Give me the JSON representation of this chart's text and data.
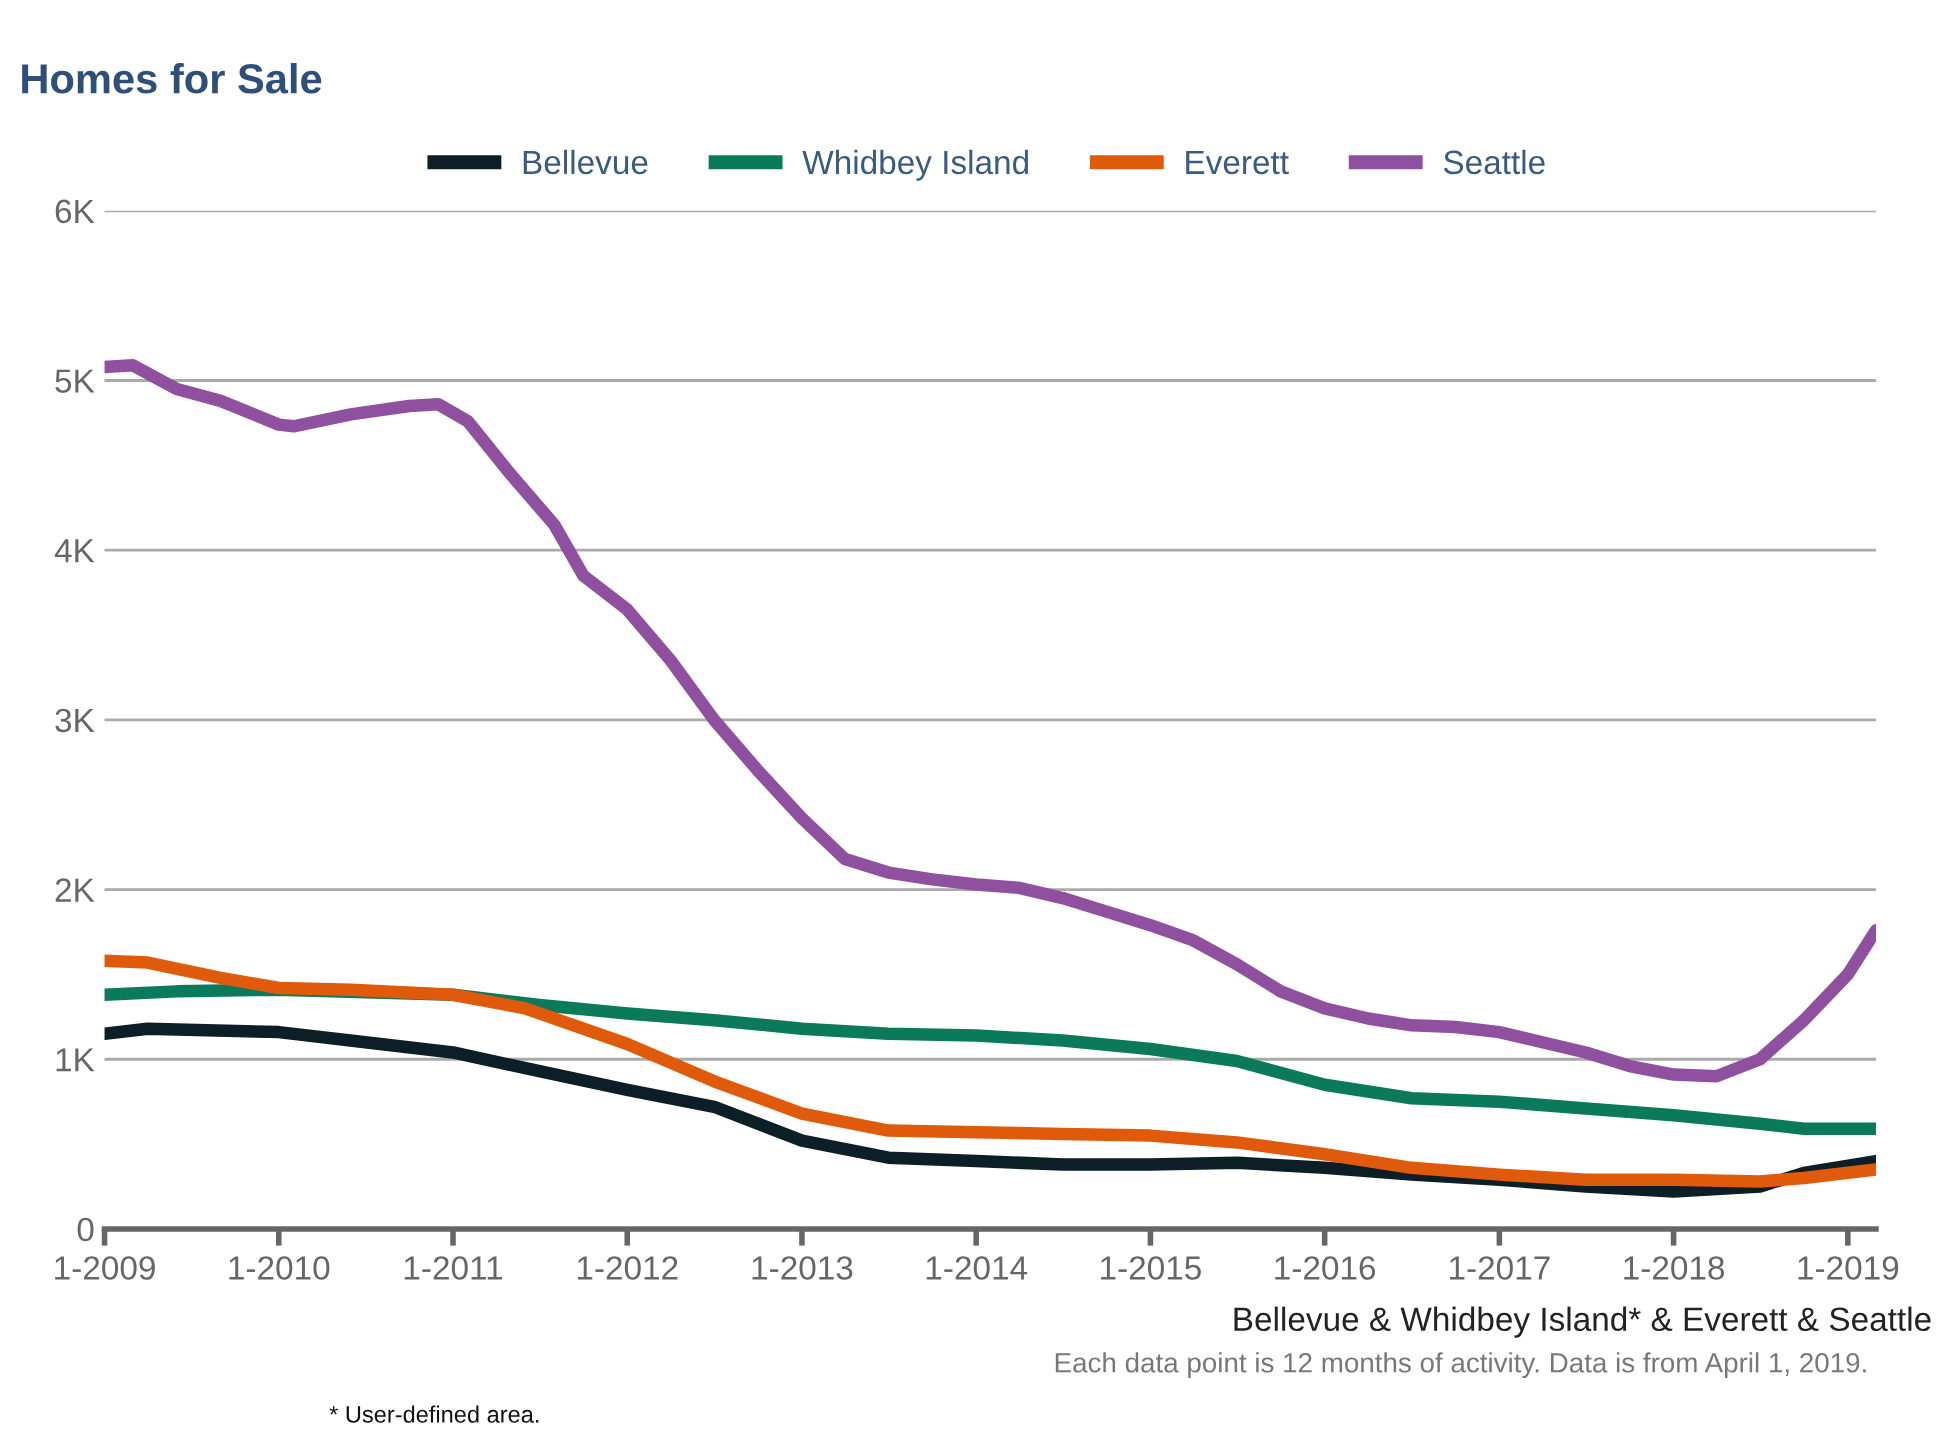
{
  "chart_data": {
    "type": "line",
    "title": "Homes for Sale",
    "xlim": [
      "2009-01",
      "2019-03"
    ],
    "xticks": [
      {
        "value": "2009-01",
        "label": "1-2009"
      },
      {
        "value": "2010-01",
        "label": "1-2010"
      },
      {
        "value": "2011-01",
        "label": "1-2011"
      },
      {
        "value": "2012-01",
        "label": "1-2012"
      },
      {
        "value": "2013-01",
        "label": "1-2013"
      },
      {
        "value": "2014-01",
        "label": "1-2014"
      },
      {
        "value": "2015-01",
        "label": "1-2015"
      },
      {
        "value": "2016-01",
        "label": "1-2016"
      },
      {
        "value": "2017-01",
        "label": "1-2017"
      },
      {
        "value": "2018-01",
        "label": "1-2018"
      },
      {
        "value": "2019-01",
        "label": "1-2019"
      }
    ],
    "ylim": [
      0,
      6000
    ],
    "yticks": [
      0,
      {
        "value": 1000,
        "label": "1K"
      },
      {
        "value": 2000,
        "label": "2K"
      },
      {
        "value": 3000,
        "label": "3K"
      },
      {
        "value": 4000,
        "label": "4K"
      },
      {
        "value": 5000,
        "label": "5K"
      },
      {
        "value": 6000,
        "label": "6K"
      }
    ],
    "grid": "y",
    "legend": "top",
    "marker": "none",
    "line_style": "solid",
    "series": [
      {
        "name": "Bellevue",
        "color": "#0d1f26",
        "x": [
          "2009-01",
          "2009-04",
          "2010-01",
          "2010-07",
          "2011-01",
          "2011-07",
          "2012-01",
          "2012-07",
          "2013-01",
          "2013-07",
          "2014-01",
          "2014-07",
          "2015-01",
          "2015-07",
          "2016-01",
          "2016-07",
          "2017-01",
          "2017-07",
          "2018-01",
          "2018-07",
          "2018-10",
          "2019-03"
        ],
        "values": [
          1150,
          1180,
          1160,
          1100,
          1040,
          930,
          820,
          720,
          520,
          420,
          400,
          380,
          380,
          390,
          360,
          320,
          290,
          250,
          220,
          250,
          330,
          400
        ]
      },
      {
        "name": "Whidbey Island",
        "color": "#0a7a5a",
        "x": [
          "2009-01",
          "2009-06",
          "2010-01",
          "2011-01",
          "2011-07",
          "2012-01",
          "2012-07",
          "2013-01",
          "2013-07",
          "2014-01",
          "2014-07",
          "2015-01",
          "2015-07",
          "2016-01",
          "2016-07",
          "2017-01",
          "2017-07",
          "2018-01",
          "2018-07",
          "2018-10",
          "2019-03"
        ],
        "values": [
          1380,
          1400,
          1410,
          1380,
          1320,
          1270,
          1230,
          1180,
          1150,
          1140,
          1110,
          1060,
          990,
          850,
          770,
          750,
          710,
          670,
          620,
          590,
          590
        ]
      },
      {
        "name": "Everett",
        "color": "#e05a0c",
        "x": [
          "2009-01",
          "2009-04",
          "2009-09",
          "2010-01",
          "2010-06",
          "2011-01",
          "2011-06",
          "2012-01",
          "2012-07",
          "2013-01",
          "2013-07",
          "2014-01",
          "2014-07",
          "2015-01",
          "2015-07",
          "2016-01",
          "2016-07",
          "2017-01",
          "2017-07",
          "2018-01",
          "2018-07",
          "2018-10",
          "2019-03"
        ],
        "values": [
          1580,
          1570,
          1480,
          1420,
          1410,
          1380,
          1300,
          1090,
          870,
          680,
          580,
          570,
          560,
          550,
          510,
          440,
          360,
          320,
          290,
          290,
          280,
          300,
          350
        ]
      },
      {
        "name": "Seattle",
        "color": "#9050a0",
        "x": [
          "2009-01",
          "2009-03",
          "2009-06",
          "2009-09",
          "2010-01",
          "2010-02",
          "2010-06",
          "2010-10",
          "2010-12",
          "2011-02",
          "2011-05",
          "2011-08",
          "2011-10",
          "2012-01",
          "2012-04",
          "2012-07",
          "2012-10",
          "2013-01",
          "2013-04",
          "2013-07",
          "2013-10",
          "2014-01",
          "2014-04",
          "2014-07",
          "2014-10",
          "2015-01",
          "2015-04",
          "2015-07",
          "2015-10",
          "2016-01",
          "2016-04",
          "2016-07",
          "2016-10",
          "2017-01",
          "2017-04",
          "2017-07",
          "2017-10",
          "2018-01",
          "2018-04",
          "2018-07",
          "2018-10",
          "2019-01",
          "2019-03"
        ],
        "values": [
          5080,
          5090,
          4950,
          4880,
          4740,
          4730,
          4800,
          4850,
          4860,
          4760,
          4450,
          4150,
          3850,
          3650,
          3350,
          3000,
          2700,
          2420,
          2180,
          2100,
          2060,
          2030,
          2010,
          1950,
          1870,
          1790,
          1700,
          1560,
          1400,
          1300,
          1240,
          1200,
          1190,
          1160,
          1100,
          1040,
          960,
          910,
          900,
          1000,
          1230,
          1500,
          1760
        ]
      }
    ],
    "annotations": [
      "Bellevue & Whidbey Island* & Everett & Seattle",
      "Each data point is 12 months of activity. Data is from April 1, 2019.",
      "* User-defined area."
    ]
  }
}
